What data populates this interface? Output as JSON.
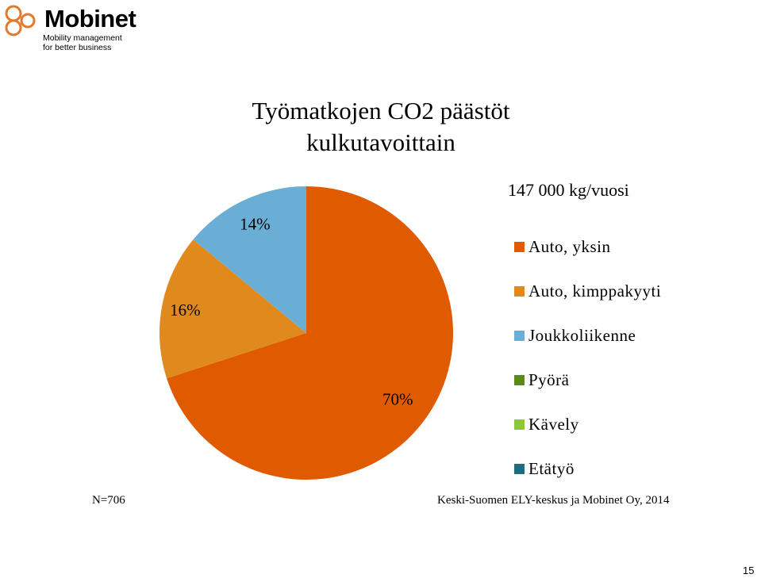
{
  "logo": {
    "name": "Mobinet",
    "tagline_1": "Mobility management",
    "tagline_2": "for better business",
    "color": "#e07a2e"
  },
  "title_1": "Työmatkojen CO2 päästöt",
  "title_2": "kulkutavoittain",
  "legend_header": "147 000 kg/vuosi",
  "chart_data": {
    "type": "pie",
    "title": "Työmatkojen CO2 päästöt kulkutavoittain",
    "slices": [
      {
        "label": "Auto, yksin",
        "value": 70,
        "display": "70%",
        "color": "#e05a00"
      },
      {
        "label": "Auto, kimppakyyti",
        "value": 16,
        "display": "16%",
        "color": "#e08a1e"
      },
      {
        "label": "Joukkoliikenne",
        "value": 14,
        "display": "14%",
        "color": "#6aaed6"
      },
      {
        "label": "Pyörä",
        "value": 0,
        "display": "",
        "color": "#5a8a1e"
      },
      {
        "label": "Kävely",
        "value": 0,
        "display": "",
        "color": "#8cc63f"
      },
      {
        "label": "Etätyö",
        "value": 0,
        "display": "",
        "color": "#1f6b80"
      }
    ],
    "legend_position": "right"
  },
  "footer": {
    "n": "N=706",
    "source": "Keski-Suomen ELY-keskus ja Mobinet Oy, 2014",
    "page": "15"
  }
}
